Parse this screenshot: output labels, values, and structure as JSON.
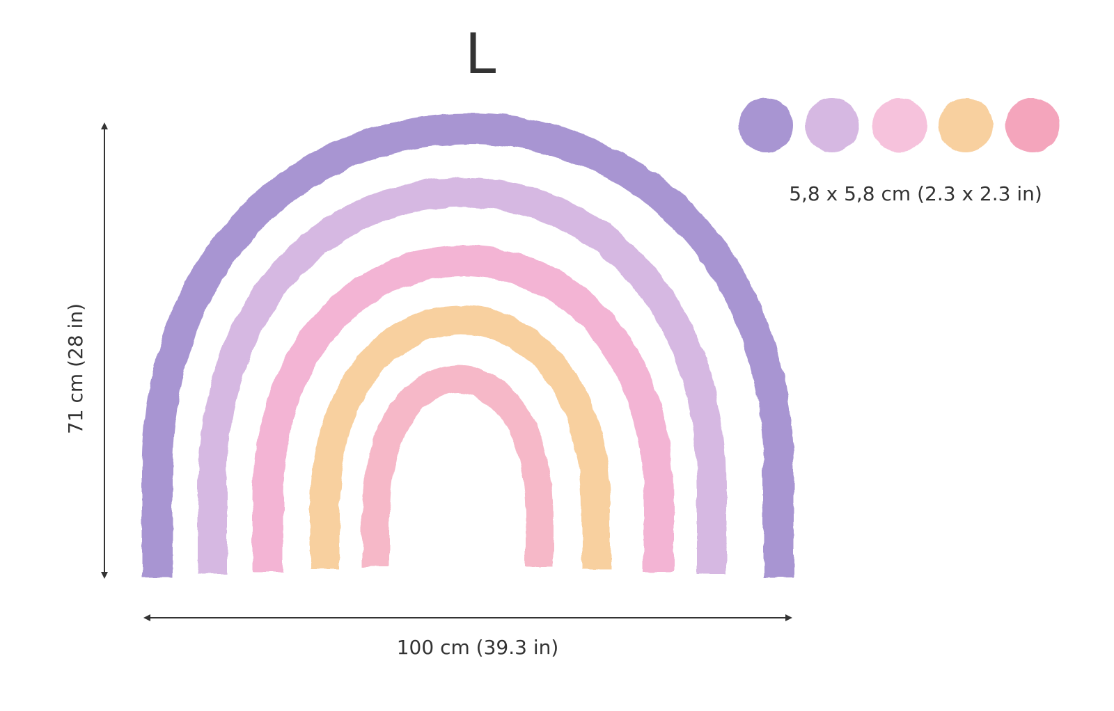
{
  "size_label": "L",
  "height_label": "71 cm (28 in)",
  "width_label": "100 cm (39.3 in)",
  "dots_label": "5,8 x 5,8 cm (2.3 x 2.3 in)",
  "colors": {
    "text": "#333333",
    "bands": [
      "#a895d2",
      "#d6b8e2",
      "#f3b4d4",
      "#f8d09f",
      "#f6b8c8"
    ],
    "dots": [
      "#a895d2",
      "#d6b8e2",
      "#f6c2dc",
      "#f8d09f",
      "#f4a5bc"
    ]
  }
}
